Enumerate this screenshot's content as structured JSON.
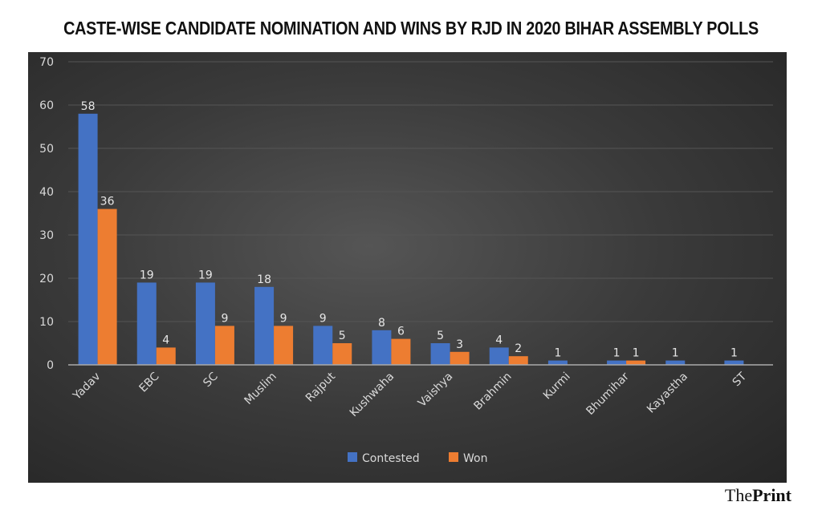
{
  "chart_data": {
    "type": "bar",
    "title": "CASTE-WISE CANDIDATE NOMINATION AND WINS BY RJD IN 2020 BIHAR ASSEMBLY POLLS",
    "categories": [
      "Yadav",
      "EBC",
      "SC",
      "Muslim",
      "Rajput",
      "Kushwaha",
      "Vaishya",
      "Brahmin",
      "Kurmi",
      "Bhumihar",
      "Kayastha",
      "ST"
    ],
    "series": [
      {
        "name": "Contested",
        "color": "#4472c4",
        "values": [
          58,
          19,
          19,
          18,
          9,
          8,
          5,
          4,
          1,
          1,
          1,
          1
        ]
      },
      {
        "name": "Won",
        "color": "#ed7d31",
        "values": [
          36,
          4,
          9,
          9,
          5,
          6,
          3,
          2,
          0,
          1,
          0,
          0
        ]
      }
    ],
    "ylim": [
      0,
      70
    ],
    "yticks": [
      0,
      10,
      20,
      30,
      40,
      50,
      60,
      70
    ],
    "grid": true,
    "legend_position": "bottom",
    "background": "#3a3a3a"
  },
  "logo": {
    "part1": "The",
    "part2": "Print"
  }
}
